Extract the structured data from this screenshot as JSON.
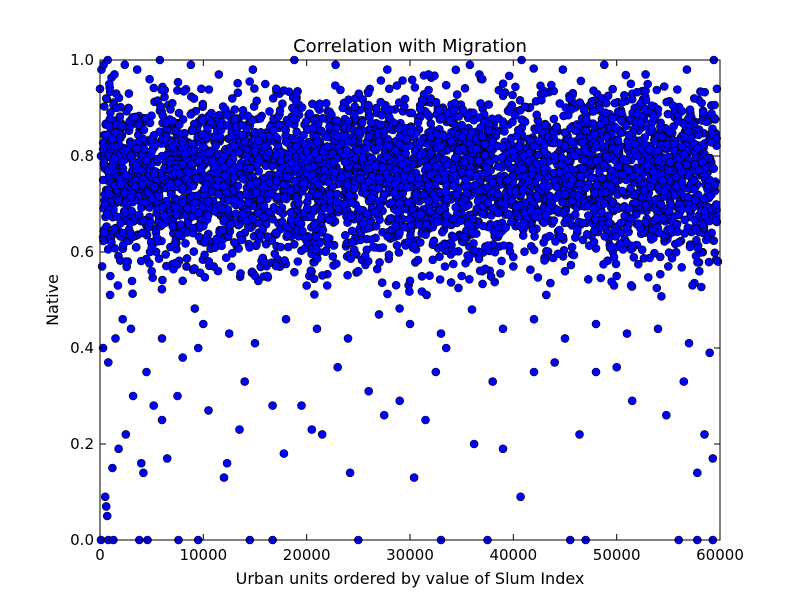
{
  "chart_data": {
    "type": "scatter",
    "title": "Correlation with Migration",
    "xlabel": "Urban units ordered by value of Slum Index",
    "ylabel": "Native",
    "xlim": [
      0,
      60000
    ],
    "ylim": [
      0.0,
      1.0
    ],
    "xticks": [
      "0",
      "10000",
      "20000",
      "30000",
      "40000",
      "50000",
      "60000"
    ],
    "yticks": [
      "0.0",
      "0.2",
      "0.4",
      "0.6",
      "0.8",
      "1.0"
    ],
    "grid": false,
    "marker_color": "#0000ff",
    "marker_edge_color": "#000000",
    "series": [
      {
        "x": [
          0,
          100,
          300,
          500,
          700,
          900,
          1200,
          1500,
          2000,
          2500,
          3000,
          3500,
          4000,
          4500,
          5000,
          6000,
          7000,
          8000,
          9000,
          10000,
          11000,
          12000,
          13000,
          14000,
          15000,
          16000,
          17000,
          18000,
          19000,
          20000,
          21000,
          22000,
          23000,
          24000,
          25000,
          26000,
          27000,
          28000,
          29000,
          30000,
          31000,
          32000,
          33000,
          34000,
          35000,
          36000,
          37000,
          38000,
          39000,
          40000,
          41000,
          42000,
          43000,
          44000,
          45000,
          46000,
          47000,
          48000,
          49000,
          50000,
          51000,
          52000,
          53000,
          54000,
          55000,
          56000,
          57000,
          58000,
          59000,
          59500,
          500,
          600,
          700,
          1200,
          1800,
          2500,
          3200,
          4000,
          4200,
          5200,
          6000,
          6500,
          7500,
          9500,
          10500,
          12000,
          12300,
          13500,
          14000,
          16700,
          17800,
          19500,
          20500,
          21500,
          23000,
          24200,
          26000,
          27500,
          29000,
          30400,
          31500,
          32500,
          33500,
          36200,
          38000,
          39000,
          40700,
          42000,
          44000,
          46400,
          48000,
          50000,
          51500,
          54800,
          56500,
          57800,
          58500,
          59300,
          300,
          800,
          1500,
          2200,
          3000,
          4500,
          6000,
          8000,
          10000,
          12500,
          15000,
          18000,
          21000,
          24000,
          27000,
          30000,
          33000,
          36000,
          39000,
          42000,
          45000,
          48000,
          51000,
          54000,
          57000,
          59000,
          100,
          800,
          1300,
          3800,
          4600,
          7600,
          9500,
          14500,
          16700,
          25000,
          33000,
          37500,
          45500,
          47000,
          56000,
          57800,
          59300,
          200,
          1000,
          2500,
          5000,
          8000,
          11000,
          15000,
          20000,
          25000,
          30000,
          35000,
          40000,
          45000,
          50000,
          55000,
          58000,
          59800,
          400,
          1100,
          2000,
          3500,
          5500,
          9000,
          13000,
          17000,
          22000,
          26000,
          31000,
          36000,
          41000,
          46000,
          51000,
          56000,
          59200,
          600,
          900,
          1600,
          2800,
          4800,
          7000,
          9800,
          12800,
          16000,
          19000,
          23500,
          28000,
          32000,
          37000,
          43000,
          49000,
          53000,
          57500,
          59700,
          150,
          350,
          750,
          1400,
          2400,
          3600,
          5800,
          8800,
          11500,
          14800,
          18800,
          22800,
          27800,
          31800,
          35800,
          40800,
          44800,
          48800,
          52800,
          56800,
          59400
        ],
        "y": [
          0.94,
          0.8,
          0.75,
          0.7,
          0.68,
          0.72,
          0.78,
          0.82,
          0.74,
          0.76,
          0.8,
          0.78,
          0.77,
          0.79,
          0.81,
          0.8,
          0.82,
          0.83,
          0.81,
          0.82,
          0.84,
          0.8,
          0.82,
          0.83,
          0.81,
          0.82,
          0.84,
          0.83,
          0.82,
          0.81,
          0.83,
          0.82,
          0.84,
          0.83,
          0.85,
          0.84,
          0.83,
          0.82,
          0.84,
          0.85,
          0.83,
          0.84,
          0.82,
          0.83,
          0.84,
          0.85,
          0.84,
          0.83,
          0.82,
          0.81,
          0.8,
          0.82,
          0.81,
          0.8,
          0.82,
          0.8,
          0.81,
          0.79,
          0.8,
          0.81,
          0.79,
          0.8,
          0.78,
          0.79,
          0.77,
          0.78,
          0.76,
          0.77,
          0.75,
          0.74,
          0.09,
          0.07,
          0.05,
          0.15,
          0.19,
          0.22,
          0.3,
          0.16,
          0.14,
          0.28,
          0.25,
          0.17,
          0.3,
          0.4,
          0.27,
          0.13,
          0.16,
          0.23,
          0.33,
          0.28,
          0.18,
          0.28,
          0.23,
          0.22,
          0.36,
          0.14,
          0.31,
          0.26,
          0.29,
          0.13,
          0.25,
          0.35,
          0.4,
          0.2,
          0.33,
          0.19,
          0.09,
          0.35,
          0.37,
          0.22,
          0.35,
          0.36,
          0.29,
          0.26,
          0.33,
          0.14,
          0.22,
          0.17,
          0.4,
          0.37,
          0.42,
          0.46,
          0.44,
          0.35,
          0.42,
          0.38,
          0.45,
          0.43,
          0.41,
          0.46,
          0.44,
          0.42,
          0.47,
          0.45,
          0.43,
          0.48,
          0.44,
          0.46,
          0.42,
          0.45,
          0.43,
          0.44,
          0.41,
          0.39,
          0.0,
          0.0,
          0.0,
          0.0,
          0.0,
          0.0,
          0.0,
          0.0,
          0.0,
          0.0,
          0.0,
          0.0,
          0.0,
          0.0,
          0.0,
          0.0,
          0.0,
          0.57,
          0.55,
          0.58,
          0.56,
          0.54,
          0.57,
          0.55,
          0.53,
          0.56,
          0.54,
          0.55,
          0.57,
          0.56,
          0.55,
          0.57,
          0.56,
          0.58,
          0.64,
          0.62,
          0.66,
          0.61,
          0.63,
          0.65,
          0.62,
          0.64,
          0.63,
          0.65,
          0.62,
          0.64,
          0.66,
          0.63,
          0.65,
          0.62,
          0.64,
          0.92,
          0.95,
          0.9,
          0.93,
          0.96,
          0.91,
          0.94,
          0.92,
          0.95,
          0.93,
          0.9,
          0.94,
          0.92,
          0.96,
          0.93,
          0.91,
          0.95,
          0.92,
          0.94,
          0.98,
          0.99,
          1.0,
          0.97,
          0.99,
          0.98,
          1.0,
          0.99,
          0.97,
          0.98,
          1.0,
          0.99,
          0.98,
          0.97,
          0.99,
          1.0,
          0.98,
          0.99,
          0.97,
          0.98,
          1.0
        ]
      }
    ]
  }
}
